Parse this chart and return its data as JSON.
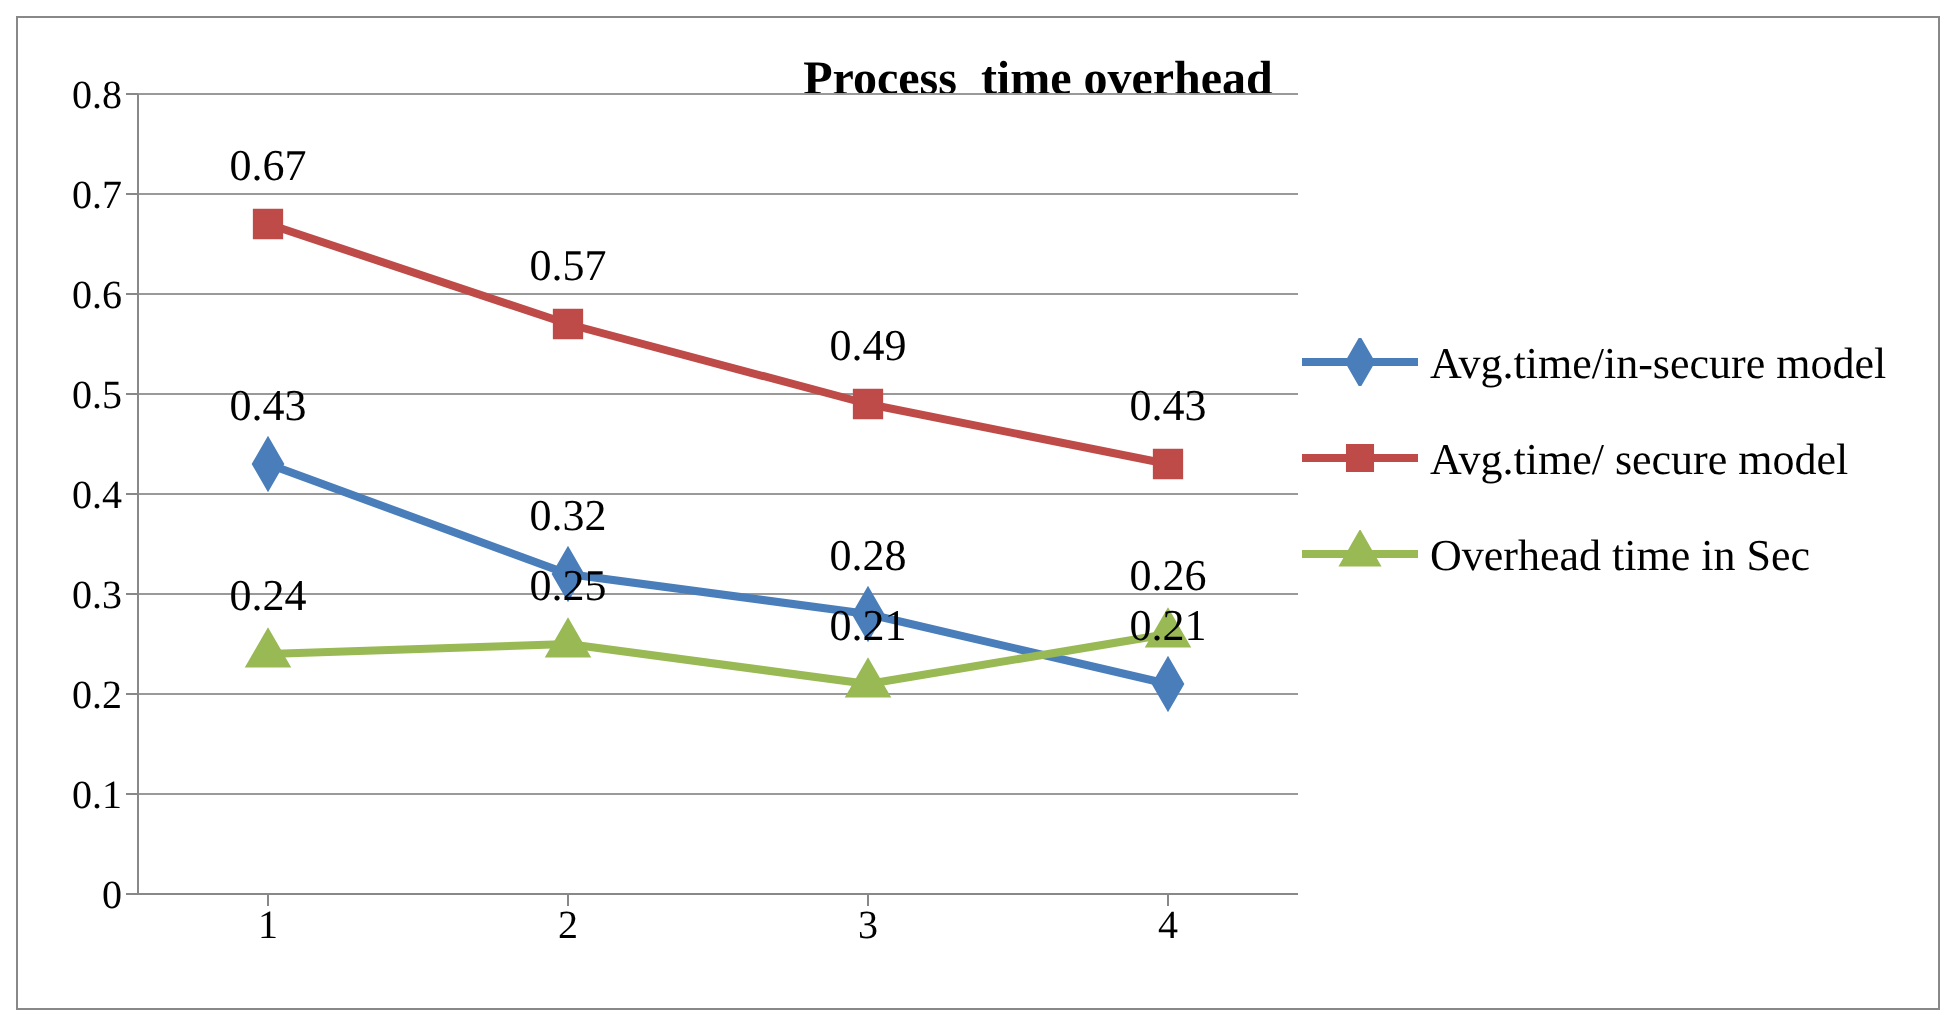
{
  "chart_data": {
    "type": "line",
    "title": "Process  time overhead",
    "categories": [
      "1",
      "2",
      "3",
      "4"
    ],
    "series": [
      {
        "name": "Avg.time/in-secure model",
        "color": "#4a7ebb",
        "marker": "diamond",
        "values": [
          0.43,
          0.32,
          0.28,
          0.21
        ]
      },
      {
        "name": "Avg.time/ secure model",
        "color": "#be4b48",
        "marker": "square",
        "values": [
          0.67,
          0.57,
          0.49,
          0.43
        ]
      },
      {
        "name": "Overhead time in Sec",
        "color": "#98b954",
        "marker": "triangle",
        "values": [
          0.24,
          0.25,
          0.21,
          0.26
        ]
      }
    ],
    "ylim": [
      0,
      0.8
    ],
    "yticks": [
      0,
      0.1,
      0.2,
      0.3,
      0.4,
      0.5,
      0.6,
      0.7,
      0.8
    ],
    "grid": "y",
    "legend": "right",
    "data_labels": true,
    "line_style": "solid"
  }
}
